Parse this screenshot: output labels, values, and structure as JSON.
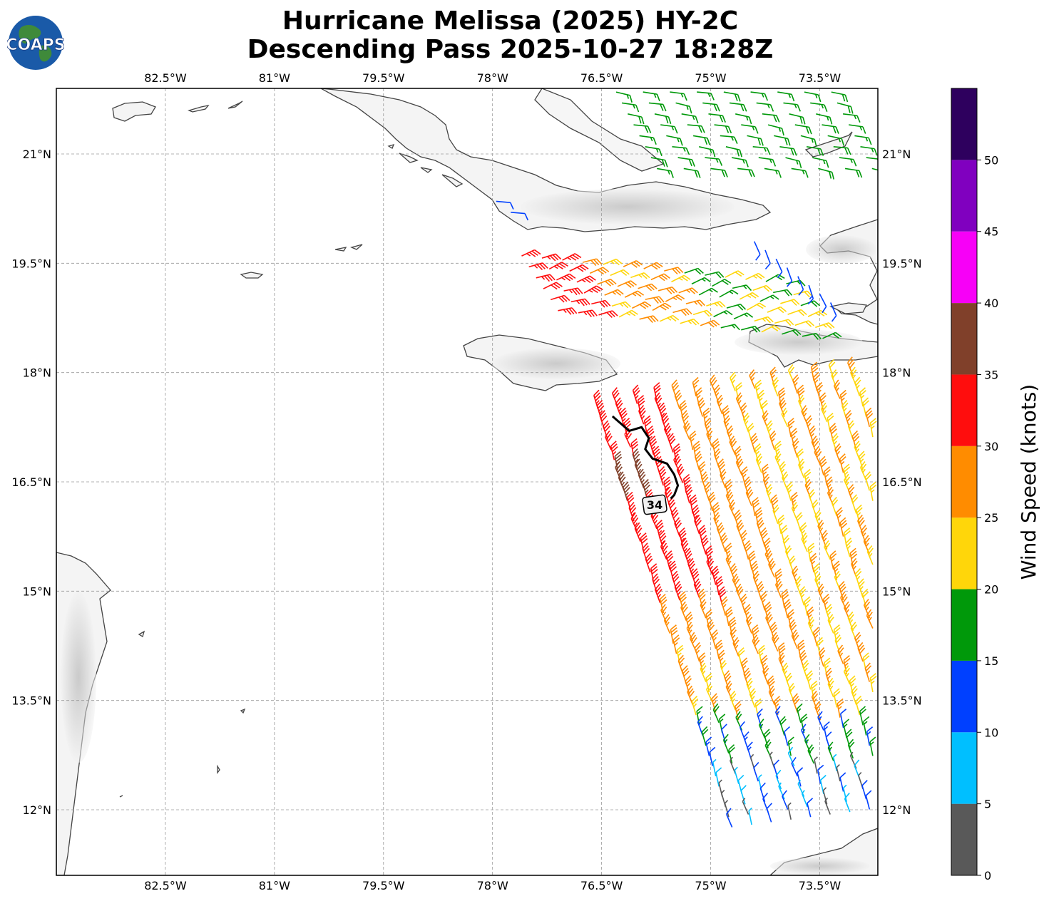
{
  "title": {
    "line1": "Hurricane Melissa (2025) HY-2C",
    "line2": "Descending Pass 2025-10-27 18:28Z"
  },
  "logo": {
    "text": "COAPS"
  },
  "map": {
    "extent": {
      "lon_min": -84.0,
      "lon_max": -72.7,
      "lat_min": 11.1,
      "lat_max": 21.9
    },
    "lon_ticks": [
      {
        "value": -82.5,
        "label": "82.5°W"
      },
      {
        "value": -81.0,
        "label": "81°W"
      },
      {
        "value": -79.5,
        "label": "79.5°W"
      },
      {
        "value": -78.0,
        "label": "78°W"
      },
      {
        "value": -76.5,
        "label": "76.5°W"
      },
      {
        "value": -75.0,
        "label": "75°W"
      },
      {
        "value": -73.5,
        "label": "73.5°W"
      }
    ],
    "lat_ticks": [
      {
        "value": 21.0,
        "label": "21°N"
      },
      {
        "value": 19.5,
        "label": "19.5°N"
      },
      {
        "value": 18.0,
        "label": "18°N"
      },
      {
        "value": 16.5,
        "label": "16.5°N"
      },
      {
        "value": 15.0,
        "label": "15°N"
      },
      {
        "value": 13.5,
        "label": "13.5°N"
      },
      {
        "value": 12.0,
        "label": "12°N"
      }
    ],
    "contour_label": "34",
    "contour_34kt": [
      [
        -76.35,
        17.4
      ],
      [
        -76.12,
        17.2
      ],
      [
        -75.95,
        17.25
      ],
      [
        -75.85,
        17.1
      ],
      [
        -75.9,
        16.95
      ],
      [
        -75.8,
        16.82
      ],
      [
        -75.6,
        16.75
      ],
      [
        -75.5,
        16.6
      ],
      [
        -75.45,
        16.45
      ],
      [
        -75.5,
        16.32
      ],
      [
        -75.55,
        16.27
      ]
    ]
  },
  "colorbar": {
    "label": "Wind Speed (knots)",
    "ticks": [
      "0",
      "5",
      "10",
      "15",
      "20",
      "25",
      "30",
      "35",
      "40",
      "45",
      "50"
    ],
    "bins": [
      {
        "min": 0,
        "max": 5,
        "color": "#595959"
      },
      {
        "min": 5,
        "max": 10,
        "color": "#00bfff"
      },
      {
        "min": 10,
        "max": 15,
        "color": "#0040ff"
      },
      {
        "min": 15,
        "max": 20,
        "color": "#00990a"
      },
      {
        "min": 20,
        "max": 25,
        "color": "#ffd60a"
      },
      {
        "min": 25,
        "max": 30,
        "color": "#ff8c00"
      },
      {
        "min": 30,
        "max": 35,
        "color": "#ff0d0d"
      },
      {
        "min": 35,
        "max": 40,
        "color": "#80402a"
      },
      {
        "min": 40,
        "max": 45,
        "color": "#f700f7"
      },
      {
        "min": 45,
        "max": 50,
        "color": "#8000bf"
      },
      {
        "min": 50,
        "max": 55,
        "color": "#2e005e"
      }
    ]
  }
}
